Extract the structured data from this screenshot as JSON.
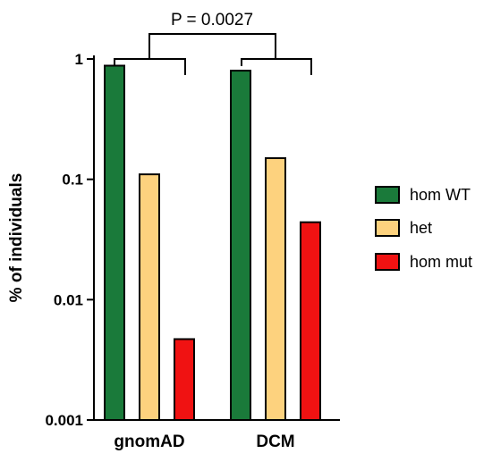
{
  "chart_data": {
    "type": "bar",
    "categories": [
      "gnomAD",
      "DCM"
    ],
    "series": [
      {
        "name": "hom WT",
        "values": [
          0.88,
          0.8
        ],
        "color": "#1a7a3a"
      },
      {
        "name": "het",
        "values": [
          0.11,
          0.15
        ],
        "color": "#fdd27e"
      },
      {
        "name": "hom mut",
        "values": [
          0.0047,
          0.044
        ],
        "color": "#f01212"
      }
    ],
    "yscale": "log",
    "ylim": [
      0.001,
      1
    ],
    "yticks": [
      "0.001",
      "0.01",
      "0.1",
      "1"
    ],
    "ylabel": "% of individuals",
    "xlabel": "",
    "title": "",
    "annotation": "P = 0.0027",
    "legend_position": "right",
    "grid": false
  }
}
